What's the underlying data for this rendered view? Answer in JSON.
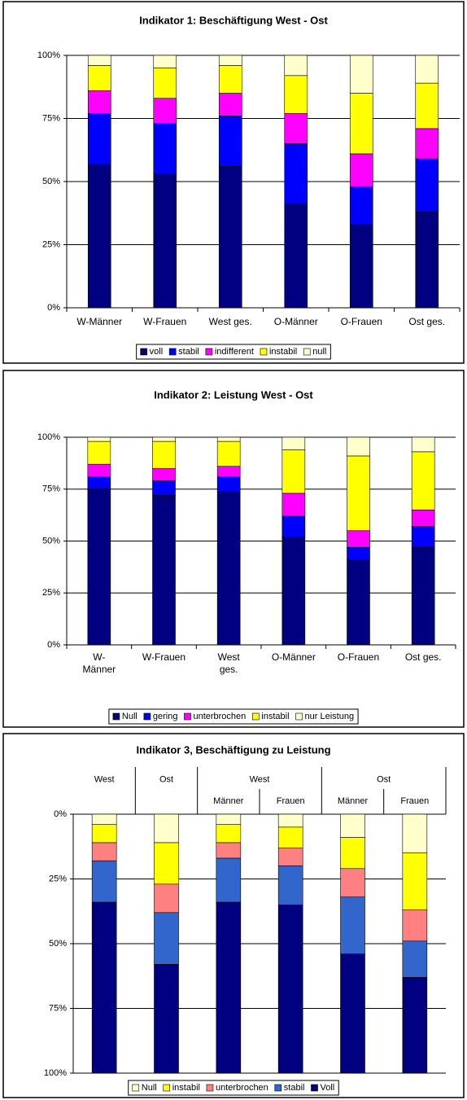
{
  "chart_data": [
    {
      "type": "bar",
      "stacked": true,
      "title": "Indikator 1: Beschäftigung West - Ost",
      "categories": [
        "W-Männer",
        "W-Frauen",
        "West ges.",
        "O-Männer",
        "O-Frauen",
        "Ost ges."
      ],
      "series": [
        {
          "name": "voll",
          "color": "#000080",
          "values": [
            57,
            53,
            56,
            41,
            33,
            38
          ]
        },
        {
          "name": "stabil",
          "color": "#0000ff",
          "values": [
            20,
            20,
            20,
            24,
            15,
            21
          ]
        },
        {
          "name": "indifferent",
          "color": "#ff00ff",
          "values": [
            9,
            10,
            9,
            12,
            13,
            12
          ]
        },
        {
          "name": "instabil",
          "color": "#ffff00",
          "values": [
            10,
            12,
            11,
            15,
            24,
            18
          ]
        },
        {
          "name": "null",
          "color": "#ffffcc",
          "values": [
            4,
            5,
            4,
            8,
            15,
            11
          ]
        }
      ],
      "ylim": [
        0,
        100
      ],
      "yticks": [
        {
          "value": 0,
          "label": "0%"
        },
        {
          "value": 25,
          "label": "25%"
        },
        {
          "value": 50,
          "label": "50%"
        },
        {
          "value": 75,
          "label": "75%"
        },
        {
          "value": 100,
          "label": "100%"
        }
      ],
      "grid": true,
      "legend": "bottom"
    },
    {
      "type": "bar",
      "stacked": true,
      "title": "Indikator 2: Leistung West - Ost",
      "categories": [
        "W-\nMänner",
        "W-Frauen",
        "West\nges.",
        "O-Männer",
        "O-Frauen",
        "Ost ges."
      ],
      "series": [
        {
          "name": "Null",
          "color": "#000080",
          "values": [
            75,
            72,
            74,
            52,
            41,
            47
          ]
        },
        {
          "name": "gering",
          "color": "#0000ff",
          "values": [
            6,
            7,
            7,
            10,
            6,
            10
          ]
        },
        {
          "name": "unterbrochen",
          "color": "#ff00ff",
          "values": [
            6,
            6,
            5,
            11,
            8,
            8
          ]
        },
        {
          "name": "instabil",
          "color": "#ffff00",
          "values": [
            11,
            13,
            12,
            21,
            36,
            28
          ]
        },
        {
          "name": "nur Leistung",
          "color": "#ffffcc",
          "values": [
            2,
            2,
            2,
            6,
            9,
            7
          ]
        }
      ],
      "ylim": [
        0,
        100
      ],
      "yticks": [
        {
          "value": 0,
          "label": "0%"
        },
        {
          "value": 25,
          "label": "25%"
        },
        {
          "value": 50,
          "label": "50%"
        },
        {
          "value": 75,
          "label": "75%"
        },
        {
          "value": 100,
          "label": "100%"
        }
      ],
      "grid": true,
      "legend": "bottom"
    },
    {
      "type": "bar",
      "stacked": true,
      "title": "Indikator 3, Beschäftigung zu Leistung",
      "categories": [
        "West",
        "Ost",
        "Männer",
        "Frauen",
        "Männer",
        "Frauen"
      ],
      "category_groups": [
        {
          "label": "West",
          "categories": [
            2,
            3
          ]
        },
        {
          "label": "Ost",
          "categories": [
            4,
            5
          ]
        }
      ],
      "series": [
        {
          "name": "Null",
          "color": "#ffffcc",
          "values": [
            4,
            11,
            4,
            5,
            9,
            15
          ]
        },
        {
          "name": "instabil",
          "color": "#ffff00",
          "values": [
            7,
            16,
            7,
            8,
            12,
            22
          ]
        },
        {
          "name": "unterbrochen",
          "color": "#ff8080",
          "values": [
            7,
            11,
            6,
            7,
            11,
            12
          ]
        },
        {
          "name": "stabil",
          "color": "#3366cc",
          "values": [
            16,
            20,
            17,
            15,
            22,
            14
          ]
        },
        {
          "name": "Voll",
          "color": "#000080",
          "values": [
            66,
            42,
            66,
            65,
            46,
            37
          ]
        }
      ],
      "ylim": [
        0,
        100
      ],
      "y_inverted": true,
      "yticks": [
        {
          "value": 0,
          "label": "0%"
        },
        {
          "value": 25,
          "label": "25%"
        },
        {
          "value": 50,
          "label": "50%"
        },
        {
          "value": 75,
          "label": "75%"
        },
        {
          "value": 100,
          "label": "100%"
        }
      ],
      "grid": true,
      "legend": "bottom"
    }
  ]
}
